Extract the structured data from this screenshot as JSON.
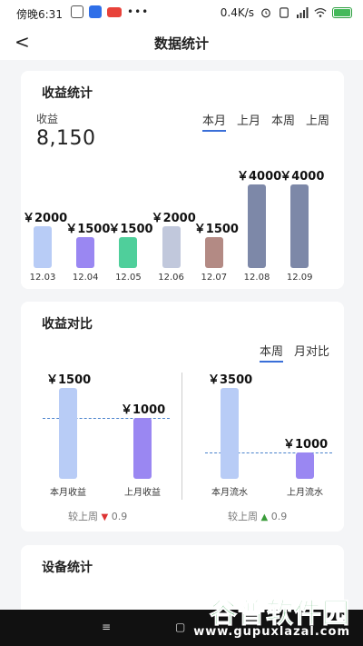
{
  "status_bar": {
    "time": "傍晚6:31",
    "net_speed": "0.4K/s",
    "battery_label": "62"
  },
  "nav": {
    "title": "数据统计",
    "back_glyph": "<"
  },
  "earnings_card": {
    "title": "收益统计",
    "metric_label": "收益",
    "metric_value": "8,150",
    "tabs": [
      "本月",
      "上月",
      "本周",
      "上周"
    ],
    "active_tab": 0
  },
  "chart_data": [
    {
      "type": "bar",
      "categories": [
        "12.03",
        "12.04",
        "12.05",
        "12.06",
        "12.07",
        "12.08",
        "12.09"
      ],
      "values": [
        2000,
        1500,
        1500,
        2000,
        1500,
        4000,
        4000
      ],
      "value_labels": [
        "￥2000",
        "￥1500",
        "￥1500",
        "￥2000",
        "￥1500",
        "￥4000",
        "￥4000"
      ],
      "colors": [
        "#b8ccf6",
        "#9a87f2",
        "#4fcf9b",
        "#c1c8dc",
        "#b38a84",
        "#7d88a8",
        "#7d88a8"
      ],
      "ylim": [
        0,
        4000
      ]
    },
    {
      "type": "bar",
      "categories": [
        "本月收益",
        "上月收益"
      ],
      "values": [
        1500,
        1000
      ],
      "value_labels": [
        "￥1500",
        "￥1000"
      ],
      "colors": [
        "#b8ccf6",
        "#9a87f2"
      ],
      "reference_value": 1000,
      "ylim": [
        0,
        1500
      ]
    },
    {
      "type": "bar",
      "categories": [
        "本月流水",
        "上月流水"
      ],
      "values": [
        3500,
        1000
      ],
      "value_labels": [
        "￥3500",
        "￥1000"
      ],
      "colors": [
        "#b8ccf6",
        "#9a87f2"
      ],
      "reference_value": 1000,
      "ylim": [
        0,
        3500
      ]
    }
  ],
  "compare_card": {
    "title": "收益对比",
    "tabs": [
      "本周",
      "月对比"
    ],
    "active_tab": 0,
    "left_footer": {
      "label": "较上周",
      "arrow": "▼",
      "value": "0.9"
    },
    "right_footer": {
      "label": "较上周",
      "arrow": "▲",
      "value": "0.9"
    }
  },
  "device_card": {
    "title": "设备统计"
  },
  "system_nav": {
    "menu": "≡",
    "home": "▢"
  },
  "watermark": {
    "brand": "谷普软件园",
    "url": "www.gupuxlazal.com"
  }
}
